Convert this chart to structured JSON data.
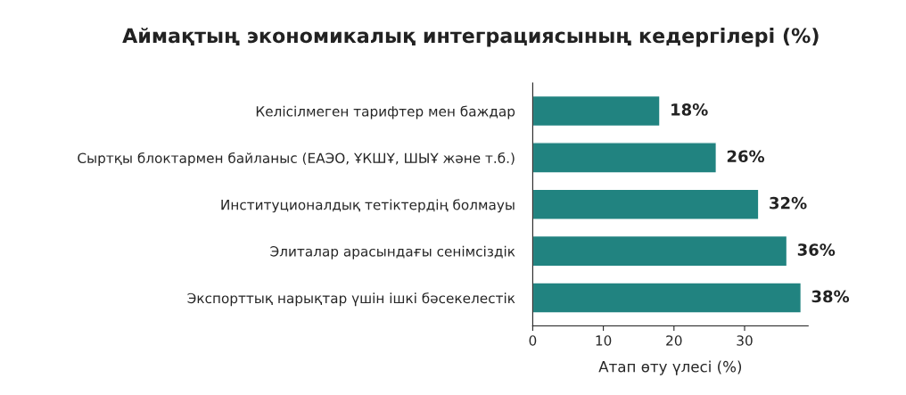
{
  "chart_data": {
    "type": "bar",
    "orientation": "horizontal",
    "title": "Аймақтың экономикалық интеграциясының кедергілері (%)",
    "xlabel": "Атап өту үлесі (%)",
    "categories": [
      "Келісілмеген тарифтер мен баждар",
      "Сыртқы блоктармен байланыс (ЕАЭО, ҰКШҰ, ШЫҰ және т.б.)",
      "Институционалдық тетіктердің болмауы",
      "Элиталар арасындағы сенімсіздік",
      "Экспорттық нарықтар үшін ішкі бәсекелестік"
    ],
    "values": [
      18,
      26,
      32,
      36,
      38
    ],
    "value_labels": [
      "18%",
      "26%",
      "32%",
      "36%",
      "38%"
    ],
    "color": "#218380",
    "xlim": [
      0,
      39
    ],
    "xticks": [
      0,
      10,
      20,
      30
    ],
    "grid": false,
    "legend": false
  }
}
